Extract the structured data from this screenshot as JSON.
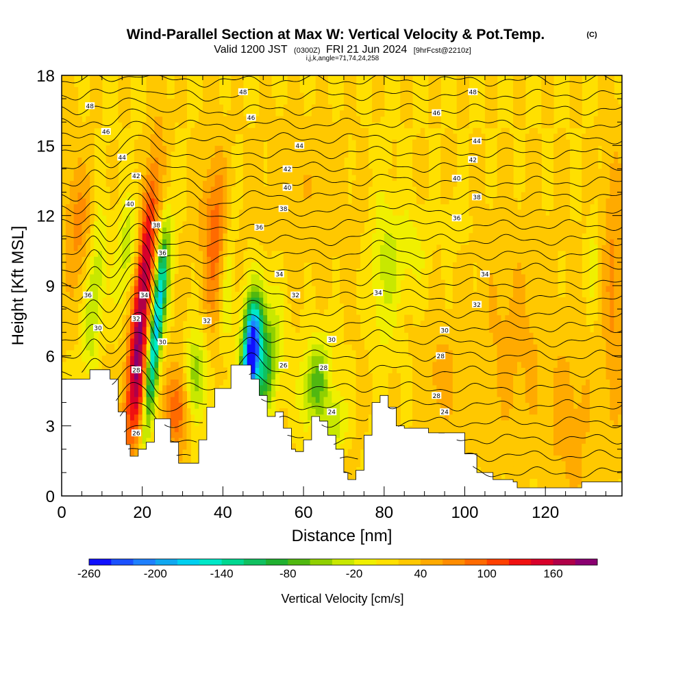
{
  "header": {
    "title": "Wind-Parallel Section at Max W: Vertical Velocity & Pot.Temp.",
    "copyright": "(C)",
    "valid_prefix": "Valid 1200 JST",
    "valid_utc": "(0300Z)",
    "valid_date": "FRI 21 Jun 2024",
    "forecast_tag": "[9hrFcst@2210z]",
    "params": "i,j,k,angle=71,74,24,258"
  },
  "chart_data": {
    "type": "heatmap",
    "title": "Wind-Parallel Section at Max W: Vertical Velocity & Pot.Temp.",
    "xlabel": "Distance [nm]",
    "ylabel": "Height [Kft MSL]",
    "xlim": [
      0,
      139
    ],
    "ylim": [
      0,
      18
    ],
    "x_ticks": [
      "0",
      "20",
      "40",
      "60",
      "80",
      "100",
      "120"
    ],
    "y_ticks": [
      "0",
      "3",
      "6",
      "9",
      "12",
      "15",
      "18"
    ],
    "colorbar": {
      "title": "Vertical Velocity [cm/s]",
      "min": -260,
      "max": 190,
      "step": 20,
      "tick_labels": [
        "-260",
        "-200",
        "-140",
        "-80",
        "-20",
        "40",
        "100",
        "160"
      ],
      "colors": [
        "#1010ff",
        "#1a50ff",
        "#1e80ff",
        "#10a8f0",
        "#00d0f0",
        "#00e8c8",
        "#00d890",
        "#10c060",
        "#20b030",
        "#50b810",
        "#90d000",
        "#c8e800",
        "#f0f000",
        "#ffe000",
        "#ffc800",
        "#ffaa00",
        "#ff8c00",
        "#ff6a00",
        "#ff4000",
        "#f01010",
        "#d8002a",
        "#b00048",
        "#8a0070"
      ]
    },
    "terrain": [
      [
        0,
        5.0
      ],
      [
        7,
        5.4
      ],
      [
        12,
        5.0
      ],
      [
        14,
        3.6
      ],
      [
        16,
        2.2
      ],
      [
        17,
        1.7
      ],
      [
        19,
        2.0
      ],
      [
        21,
        2.3
      ],
      [
        23,
        3.3
      ],
      [
        25,
        3.3
      ],
      [
        27,
        2.3
      ],
      [
        29,
        1.4
      ],
      [
        31,
        1.4
      ],
      [
        34,
        2.4
      ],
      [
        36,
        3.8
      ],
      [
        38,
        4.6
      ],
      [
        42,
        5.6
      ],
      [
        45,
        5.6
      ],
      [
        47,
        5.0
      ],
      [
        49,
        4.3
      ],
      [
        51,
        3.4
      ],
      [
        53,
        3.6
      ],
      [
        55,
        2.9
      ],
      [
        57,
        2.0
      ],
      [
        58,
        1.9
      ],
      [
        60,
        2.4
      ],
      [
        62,
        3.4
      ],
      [
        64,
        3.2
      ],
      [
        66,
        2.6
      ],
      [
        68,
        2.0
      ],
      [
        70,
        1.0
      ],
      [
        71,
        0.7
      ],
      [
        73,
        1.1
      ],
      [
        75,
        2.6
      ],
      [
        77,
        4.0
      ],
      [
        79,
        4.3
      ],
      [
        81,
        3.8
      ],
      [
        83,
        3.0
      ],
      [
        85,
        2.9
      ],
      [
        89,
        2.9
      ],
      [
        91,
        2.7
      ],
      [
        97,
        2.7
      ],
      [
        100,
        1.8
      ],
      [
        103,
        1.0
      ],
      [
        107,
        0.7
      ],
      [
        112,
        0.6
      ],
      [
        113,
        0.35
      ],
      [
        127,
        0.35
      ],
      [
        129,
        0.6
      ],
      [
        139,
        0.6
      ]
    ],
    "vertical_velocity_features": [
      {
        "x": 8,
        "y": 8.5,
        "sx": 1.6,
        "sy": 2.6,
        "tilt": 0.45,
        "w": -70
      },
      {
        "x": 16,
        "y": 10.5,
        "sx": 1.8,
        "sy": 1.8,
        "tilt": 0.6,
        "w": -55
      },
      {
        "x": 20,
        "y": 8.5,
        "sx": 1.6,
        "sy": 3.8,
        "tilt": 0.55,
        "w": 160
      },
      {
        "x": 19,
        "y": 4.5,
        "sx": 1.6,
        "sy": 1.6,
        "tilt": 0.3,
        "w": 60
      },
      {
        "x": 23,
        "y": 6.5,
        "sx": 1.1,
        "sy": 2.8,
        "tilt": 0.55,
        "w": -170
      },
      {
        "x": 25,
        "y": 9.3,
        "sx": 1.5,
        "sy": 1.8,
        "tilt": 0.4,
        "w": -70
      },
      {
        "x": 29,
        "y": 3.8,
        "sx": 2.2,
        "sy": 1.3,
        "tilt": 0.2,
        "w": 80
      },
      {
        "x": 33,
        "y": 5.0,
        "sx": 1.8,
        "sy": 1.4,
        "tilt": 0.1,
        "w": -90
      },
      {
        "x": 38,
        "y": 11.0,
        "sx": 2.2,
        "sy": 2.5,
        "tilt": 0.0,
        "w": 70
      },
      {
        "x": 41,
        "y": 9.0,
        "sx": 1.2,
        "sy": 2.0,
        "tilt": 0.2,
        "w": -50
      },
      {
        "x": 47,
        "y": 6.0,
        "sx": 1.4,
        "sy": 1.4,
        "tilt": 0.4,
        "w": -230
      },
      {
        "x": 48,
        "y": 7.0,
        "sx": 2.5,
        "sy": 1.6,
        "tilt": 0.3,
        "w": -90
      },
      {
        "x": 50,
        "y": 5.0,
        "sx": 2.0,
        "sy": 1.2,
        "tilt": 0.2,
        "w": -80
      },
      {
        "x": 53,
        "y": 6.5,
        "sx": 2.0,
        "sy": 1.5,
        "tilt": 0.2,
        "w": -40
      },
      {
        "x": 63,
        "y": 4.8,
        "sx": 2.5,
        "sy": 1.4,
        "tilt": 0.3,
        "w": -90
      },
      {
        "x": 68,
        "y": 3.2,
        "sx": 1.8,
        "sy": 0.9,
        "tilt": 0.2,
        "w": -60
      },
      {
        "x": 80,
        "y": 9.5,
        "sx": 2.5,
        "sy": 2.5,
        "tilt": 0.0,
        "w": -45
      },
      {
        "x": 86,
        "y": 10.5,
        "sx": 3.5,
        "sy": 1.4,
        "tilt": 0.0,
        "w": -30
      },
      {
        "x": 98,
        "y": 11.8,
        "sx": 2.0,
        "sy": 0.8,
        "tilt": 0.0,
        "w": -20
      },
      {
        "x": 94,
        "y": 5.0,
        "sx": 3.0,
        "sy": 1.5,
        "tilt": 0.0,
        "w": 30
      },
      {
        "x": 112,
        "y": 6.5,
        "sx": 6.0,
        "sy": 3.0,
        "tilt": 0.0,
        "w": 25
      },
      {
        "x": 126,
        "y": 3.0,
        "sx": 4.0,
        "sy": 2.5,
        "tilt": 0.0,
        "w": 28
      },
      {
        "x": 4,
        "y": 11.5,
        "sx": 2.5,
        "sy": 2.0,
        "tilt": 0.0,
        "w": 45
      },
      {
        "x": 137,
        "y": 9.0,
        "sx": 2.0,
        "sy": 4.0,
        "tilt": 0.0,
        "w": 45
      },
      {
        "x": 132,
        "y": 10.0,
        "sx": 1.2,
        "sy": 1.5,
        "tilt": 0.0,
        "w": -30
      },
      {
        "x": 10,
        "y": 2.5,
        "sx": 3.0,
        "sy": 1.5,
        "tilt": 0.0,
        "w": 30
      },
      {
        "x": 60,
        "y": 13.0,
        "sx": 8.0,
        "sy": 2.0,
        "tilt": 0.0,
        "w": 12
      }
    ],
    "potential_temperature_contours": {
      "min": 23,
      "max": 50,
      "step": 1,
      "perturbations": [
        {
          "x": 19,
          "y": 9,
          "sx": 3.0,
          "sy": 5.0,
          "dy": 1.5
        },
        {
          "x": 24,
          "y": 9,
          "sx": 1.5,
          "sy": 4.0,
          "dy": -0.7
        },
        {
          "x": 8,
          "y": 9,
          "sx": 2.0,
          "sy": 4.0,
          "dy": 0.6
        },
        {
          "x": 47,
          "y": 6.5,
          "sx": 3.0,
          "sy": 2.5,
          "dy": 0.6
        },
        {
          "x": 80,
          "y": 9.5,
          "sx": 4.0,
          "sy": 3.0,
          "dy": 0.4
        },
        {
          "x": 38,
          "y": 12,
          "sx": 3.0,
          "sy": 3.0,
          "dy": -0.3
        }
      ]
    },
    "contour_labels": [
      {
        "x": 45,
        "y": 17.3,
        "text": "48"
      },
      {
        "x": 102,
        "y": 17.3,
        "text": "48"
      },
      {
        "x": 7,
        "y": 16.7,
        "text": "48"
      },
      {
        "x": 47,
        "y": 16.2,
        "text": "46"
      },
      {
        "x": 93,
        "y": 16.4,
        "text": "46"
      },
      {
        "x": 11,
        "y": 15.6,
        "text": "46"
      },
      {
        "x": 59,
        "y": 15.0,
        "text": "44"
      },
      {
        "x": 103,
        "y": 15.2,
        "text": "44"
      },
      {
        "x": 15,
        "y": 14.5,
        "text": "44"
      },
      {
        "x": 56,
        "y": 14.0,
        "text": "42"
      },
      {
        "x": 102,
        "y": 14.4,
        "text": "42"
      },
      {
        "x": 18.5,
        "y": 13.7,
        "text": "42"
      },
      {
        "x": 56,
        "y": 13.2,
        "text": "40"
      },
      {
        "x": 98,
        "y": 13.6,
        "text": "40"
      },
      {
        "x": 17,
        "y": 12.5,
        "text": "40"
      },
      {
        "x": 55,
        "y": 12.3,
        "text": "38"
      },
      {
        "x": 103,
        "y": 12.8,
        "text": "38"
      },
      {
        "x": 23.5,
        "y": 11.6,
        "text": "38"
      },
      {
        "x": 49,
        "y": 11.5,
        "text": "36"
      },
      {
        "x": 98,
        "y": 11.9,
        "text": "36"
      },
      {
        "x": 25,
        "y": 10.4,
        "text": "36"
      },
      {
        "x": 6.5,
        "y": 8.6,
        "text": "36"
      },
      {
        "x": 54,
        "y": 9.5,
        "text": "34"
      },
      {
        "x": 105,
        "y": 9.5,
        "text": "34"
      },
      {
        "x": 78.5,
        "y": 8.7,
        "text": "34"
      },
      {
        "x": 20.5,
        "y": 8.6,
        "text": "34"
      },
      {
        "x": 58,
        "y": 8.6,
        "text": "32"
      },
      {
        "x": 103,
        "y": 8.2,
        "text": "32"
      },
      {
        "x": 36,
        "y": 7.5,
        "text": "32"
      },
      {
        "x": 18.5,
        "y": 7.6,
        "text": "32"
      },
      {
        "x": 67,
        "y": 6.7,
        "text": "30"
      },
      {
        "x": 95,
        "y": 7.1,
        "text": "30"
      },
      {
        "x": 9,
        "y": 7.2,
        "text": "30"
      },
      {
        "x": 25,
        "y": 6.6,
        "text": "30"
      },
      {
        "x": 94,
        "y": 6.0,
        "text": "28"
      },
      {
        "x": 65,
        "y": 5.5,
        "text": "28"
      },
      {
        "x": 93,
        "y": 4.3,
        "text": "28"
      },
      {
        "x": 18.5,
        "y": 5.4,
        "text": "28"
      },
      {
        "x": 55,
        "y": 5.6,
        "text": "26"
      },
      {
        "x": 18.5,
        "y": 2.7,
        "text": "26"
      },
      {
        "x": 67,
        "y": 3.6,
        "text": "24"
      },
      {
        "x": 95,
        "y": 3.6,
        "text": "24"
      }
    ]
  }
}
